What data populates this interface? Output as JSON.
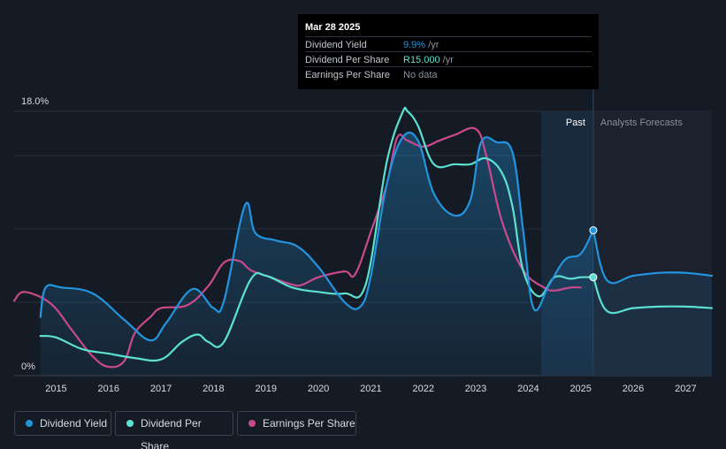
{
  "tooltip": {
    "date": "Mar 28 2025",
    "rows": [
      {
        "label": "Dividend Yield",
        "value": "9.9%",
        "suffix": " /yr"
      },
      {
        "label": "Dividend Per Share",
        "value": "R15.000",
        "suffix": " /yr"
      },
      {
        "label": "Earnings Per Share",
        "value": "No data",
        "suffix": ""
      }
    ]
  },
  "legend": [
    {
      "label": "Dividend Yield",
      "color": "#2394df"
    },
    {
      "label": "Dividend Per Share",
      "color": "#5ce1d1"
    },
    {
      "label": "Earnings Per Share",
      "color": "#c94a8c"
    }
  ],
  "chart_data": {
    "type": "line",
    "title": "",
    "y_tick_labels": [
      "18.0%",
      "0%"
    ],
    "ylim": [
      0,
      18
    ],
    "xlim": [
      2014.2,
      2027.5
    ],
    "x_tick_labels": [
      "2015",
      "2016",
      "2017",
      "2018",
      "2019",
      "2020",
      "2021",
      "2022",
      "2023",
      "2024",
      "2025",
      "2026",
      "2027"
    ],
    "regions": {
      "past_label": "Past",
      "forecast_label": "Analysts Forecasts",
      "forecast_start": 2025.24
    },
    "highlight_band": [
      2024.25,
      2025.24
    ],
    "grid": true,
    "legend_position": "bottom-left",
    "series": [
      {
        "name": "Dividend Yield",
        "color": "#2394df",
        "x": [
          2014.7,
          2014.8,
          2015.1,
          2015.7,
          2016.3,
          2016.8,
          2017.1,
          2017.6,
          2018.0,
          2018.2,
          2018.6,
          2018.8,
          2019.2,
          2019.6,
          2020.0,
          2020.5,
          2020.8,
          2021.0,
          2021.3,
          2021.6,
          2021.9,
          2022.2,
          2022.6,
          2022.9,
          2023.1,
          2023.4,
          2023.7,
          2023.9,
          2024.1,
          2024.4,
          2024.7,
          2025.0,
          2025.24
        ],
        "y": [
          4.0,
          6.0,
          6.0,
          5.6,
          3.8,
          2.4,
          3.6,
          5.9,
          4.6,
          5.1,
          11.6,
          9.7,
          9.2,
          8.8,
          7.4,
          5.0,
          4.7,
          6.8,
          13.0,
          16.2,
          16.0,
          12.4,
          10.9,
          12.0,
          15.9,
          15.9,
          15.2,
          10.0,
          4.6,
          6.2,
          7.9,
          8.3,
          9.9
        ]
      },
      {
        "name": "Dividend Yield (forecast)",
        "color": "#2394df",
        "x": [
          2025.24,
          2025.5,
          2026.0,
          2026.5,
          2027.0,
          2027.5
        ],
        "y": [
          9.9,
          6.5,
          6.8,
          7.0,
          7.0,
          6.8
        ]
      },
      {
        "name": "Dividend Per Share",
        "color": "#5ce1d1",
        "x": [
          2014.7,
          2015.0,
          2015.5,
          2016.0,
          2016.5,
          2017.0,
          2017.4,
          2017.7,
          2017.9,
          2018.2,
          2018.7,
          2019.0,
          2019.5,
          2020.0,
          2020.5,
          2020.9,
          2021.3,
          2021.6,
          2021.7,
          2021.9,
          2022.2,
          2022.6,
          2022.9,
          2023.2,
          2023.5,
          2023.7,
          2023.9,
          2024.2,
          2024.5,
          2024.8,
          2025.0,
          2025.24
        ],
        "y": [
          2.7,
          2.6,
          1.8,
          1.5,
          1.2,
          1.1,
          2.3,
          2.8,
          2.3,
          2.3,
          6.5,
          6.8,
          6.0,
          5.7,
          5.6,
          6.2,
          14.5,
          17.9,
          18.0,
          17.0,
          14.4,
          14.4,
          14.4,
          14.8,
          13.8,
          11.5,
          7.2,
          5.4,
          6.7,
          6.6,
          6.7,
          6.7
        ]
      },
      {
        "name": "Dividend Per Share (forecast)",
        "color": "#5ce1d1",
        "x": [
          2025.24,
          2025.5,
          2026.0,
          2026.5,
          2027.0,
          2027.5
        ],
        "y": [
          6.7,
          4.4,
          4.6,
          4.7,
          4.7,
          4.6
        ]
      },
      {
        "name": "Earnings Per Share",
        "color": "#c94a8c",
        "x": [
          2014.2,
          2014.4,
          2014.9,
          2015.3,
          2015.7,
          2016.0,
          2016.3,
          2016.5,
          2016.8,
          2017.0,
          2017.5,
          2017.9,
          2018.2,
          2018.5,
          2018.7,
          2019.0,
          2019.5,
          2019.7,
          2020.0,
          2020.5,
          2020.7,
          2021.0,
          2021.3,
          2021.5,
          2021.7,
          2022.0,
          2022.3,
          2022.6,
          2023.0,
          2023.2,
          2023.5,
          2023.9,
          2024.3,
          2024.5,
          2024.8,
          2025.0
        ],
        "y": [
          5.1,
          5.7,
          4.9,
          3.1,
          1.3,
          0.6,
          1.0,
          2.9,
          4.0,
          4.6,
          4.8,
          6.1,
          7.7,
          7.8,
          7.2,
          6.8,
          6.2,
          6.2,
          6.7,
          7.1,
          6.9,
          9.8,
          13.0,
          16.2,
          16.0,
          15.6,
          16.0,
          16.4,
          16.8,
          15.0,
          10.5,
          7.2,
          6.0,
          5.8,
          6.0,
          6.0
        ]
      }
    ]
  }
}
